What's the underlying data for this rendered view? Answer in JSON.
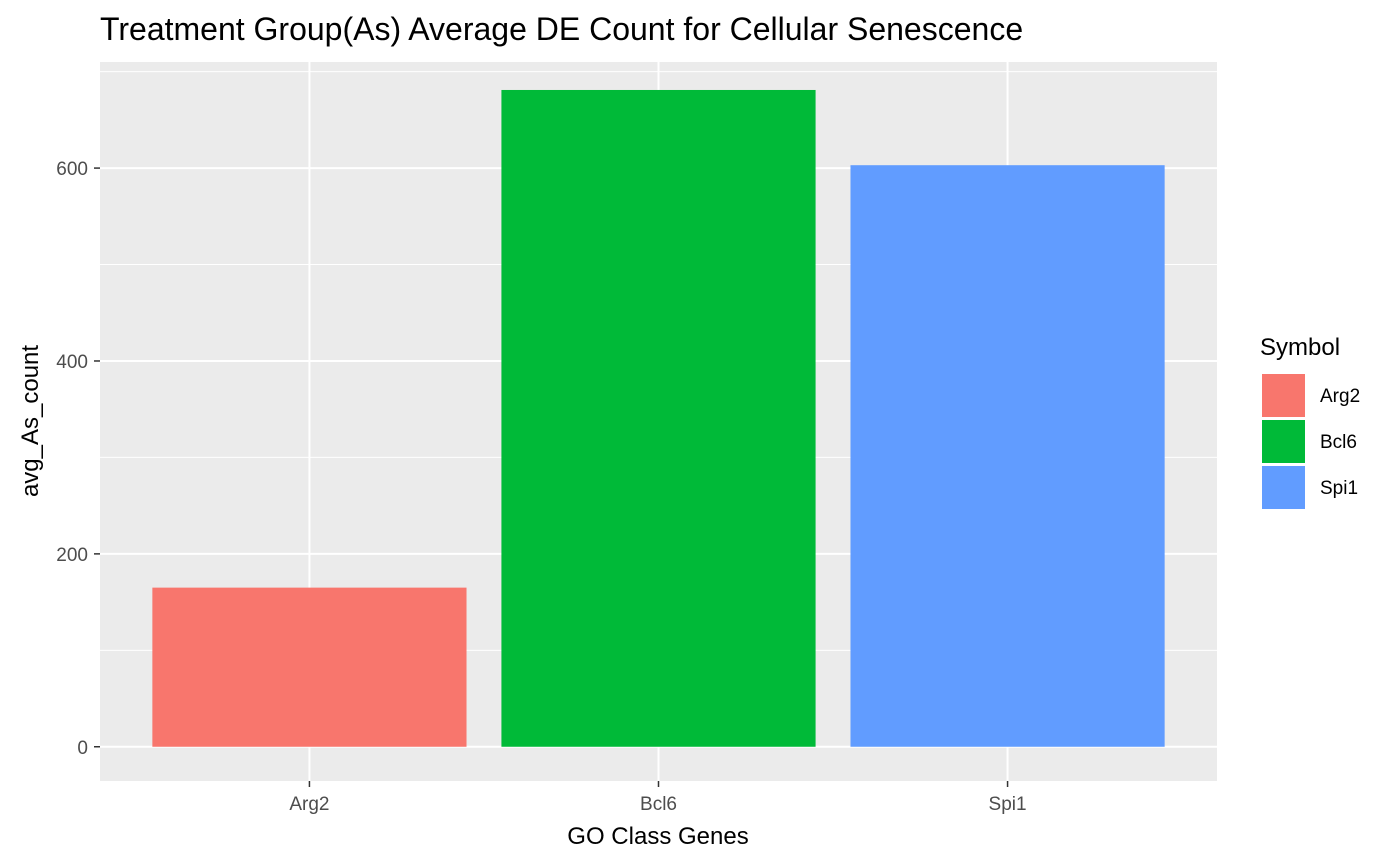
{
  "chart_data": {
    "type": "bar",
    "title": "Treatment Group(As) Average DE Count for Cellular Senescence",
    "xlabel": "GO Class Genes",
    "ylabel": "avg_As_count",
    "categories": [
      "Arg2",
      "Bcl6",
      "Spi1"
    ],
    "values": [
      165,
      681,
      603
    ],
    "colors": [
      "#F8766D",
      "#00BA38",
      "#619CFF"
    ],
    "ylim": [
      0,
      710
    ],
    "yticks": [
      0,
      200,
      400,
      600
    ],
    "grid": true,
    "panel_background": "#EBEBEB",
    "legend": {
      "title": "Symbol",
      "position": "right",
      "entries": [
        "Arg2",
        "Bcl6",
        "Spi1"
      ]
    }
  }
}
